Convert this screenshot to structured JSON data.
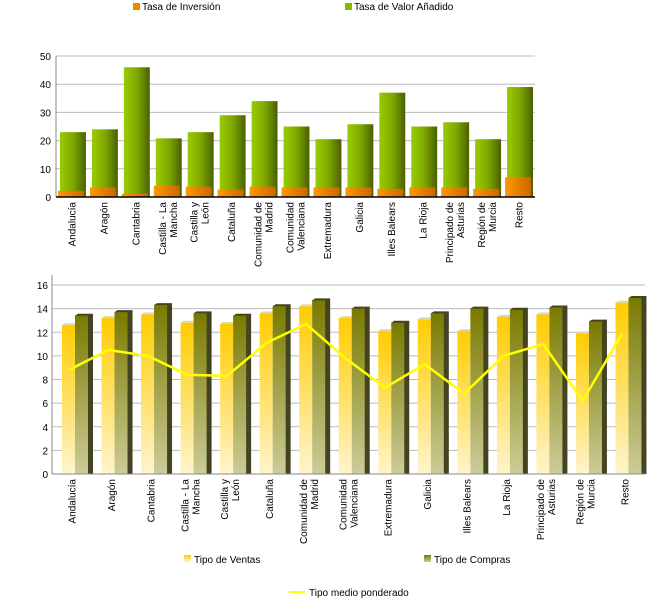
{
  "chart_data": [
    {
      "type": "bar",
      "categories": [
        "Andalucía",
        "Aragón",
        "Cantabria",
        "Castilla - La Mancha",
        "Castilla y León",
        "Cataluña",
        "Comunidad de Madrid",
        "Comunidad Valenciana",
        "Extremadura",
        "Galicia",
        "Illes Balears",
        "La Rioja",
        "Principado de Asturias",
        "Región de Murcia",
        "Resto"
      ],
      "series": [
        {
          "name": "Tasa de Inversión",
          "color": "#ee8800",
          "values": [
            2.2,
            3.4,
            1.2,
            4.0,
            3.7,
            2.6,
            3.7,
            3.4,
            3.4,
            3.4,
            2.9,
            3.4,
            3.4,
            2.9,
            7.0
          ]
        },
        {
          "name": "Tasa de Valor Añadido",
          "color": "#88bb00",
          "values": [
            23,
            24,
            46,
            20.8,
            23,
            29,
            34,
            25,
            20.5,
            25.8,
            37,
            25,
            26.5,
            20.5,
            39
          ]
        }
      ],
      "ylim": [
        0,
        50
      ],
      "yticks": [
        "0",
        "10",
        "20",
        "30",
        "40",
        "50"
      ],
      "grid": true,
      "legend": "top"
    },
    {
      "type": "bar",
      "categories": [
        "Andalucía",
        "Aragón",
        "Cantabria",
        "Castilla - La Mancha",
        "Castilla y León",
        "Cataluña",
        "Comunidad de Madrid",
        "Comunidad Valenciana",
        "Extremadura",
        "Galicia",
        "Illes Balears",
        "La Rioja",
        "Principado de Asturias",
        "Región de Murcia",
        "Resto"
      ],
      "series": [
        {
          "name": "Tipo de Ventas",
          "type": "bar",
          "color": "#ffcc22",
          "values": [
            12.6,
            13.2,
            13.5,
            12.8,
            12.7,
            13.6,
            14.2,
            13.2,
            12.1,
            13.1,
            12.1,
            13.3,
            13.5,
            11.9,
            14.5
          ]
        },
        {
          "name": "Tipo de Compras",
          "type": "bar",
          "color": "#7a7a10",
          "values": [
            13.4,
            13.7,
            14.3,
            13.6,
            13.4,
            14.2,
            14.7,
            14.0,
            12.8,
            13.6,
            14.0,
            13.9,
            14.1,
            12.9,
            14.9
          ]
        },
        {
          "name": "Tipo medio ponderado",
          "type": "line",
          "color": "#ffff00",
          "values": [
            8.8,
            10.5,
            10.0,
            8.4,
            8.3,
            11.1,
            12.7,
            9.8,
            7.3,
            9.3,
            6.8,
            10.0,
            11.0,
            6.2,
            11.9
          ]
        }
      ],
      "ylim": [
        0,
        16
      ],
      "yticks": [
        "0",
        "2",
        "4",
        "6",
        "8",
        "10",
        "12",
        "14",
        "16"
      ],
      "grid": true,
      "legend": "bottom"
    }
  ]
}
